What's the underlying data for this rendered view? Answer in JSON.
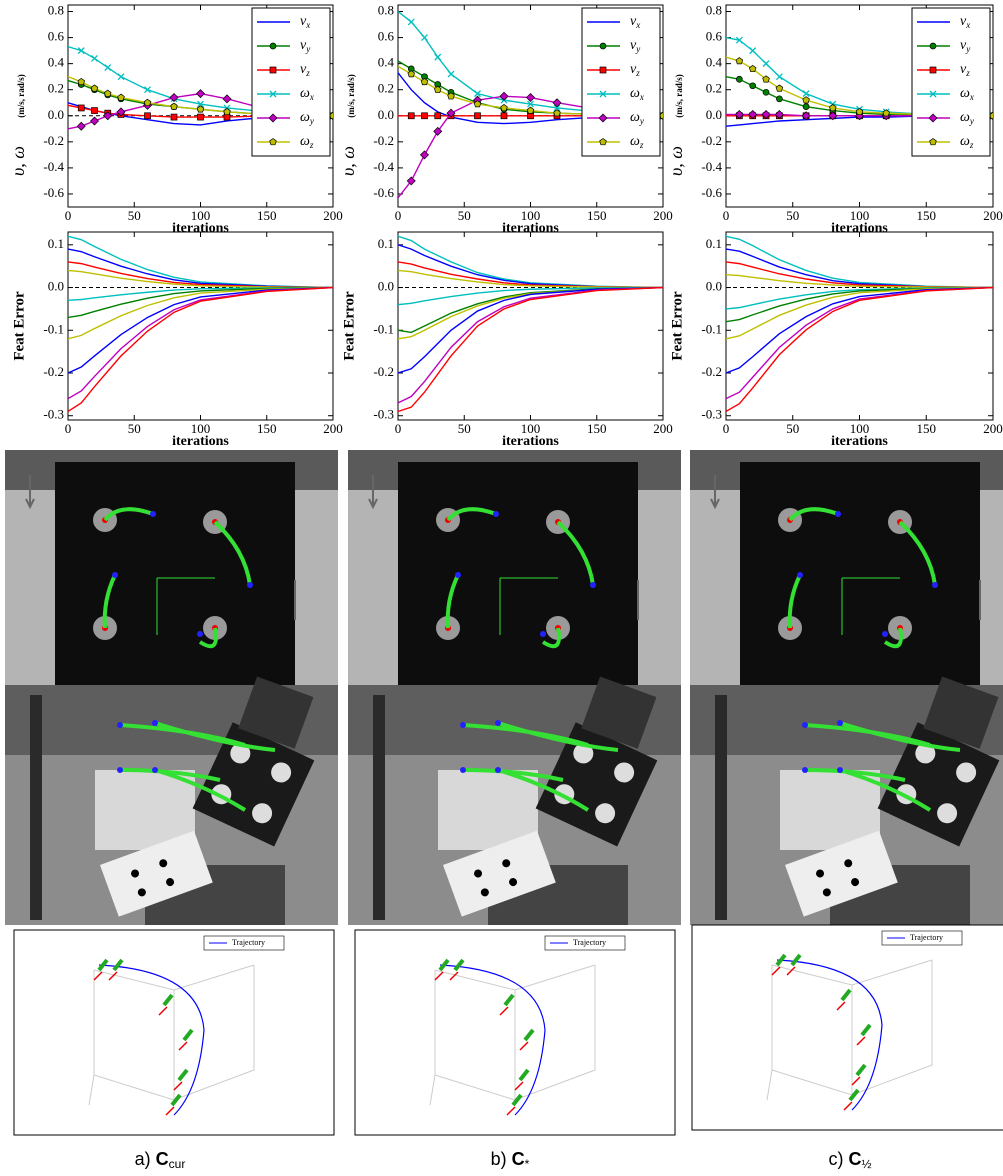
{
  "chart_data": [
    {
      "type": "line",
      "ylabel": "υ, ω",
      "ylabel_unit": "(m/s, rad/s)",
      "xlabel": "iterations",
      "xlim": [
        0,
        200
      ],
      "ylim": [
        -0.7,
        0.85
      ],
      "xticks": [
        0,
        50,
        100,
        150,
        200
      ],
      "yticks": [
        -0.6,
        -0.4,
        -0.2,
        {
          "value": 0,
          "label": "0.0"
        },
        0.2,
        0.4,
        0.6,
        0.8
      ],
      "legend": "upper right",
      "grid": false,
      "x": [
        0,
        10,
        20,
        30,
        40,
        60,
        80,
        100,
        120,
        150,
        200
      ],
      "series": [
        {
          "name": "v_x",
          "color": "#0000ff",
          "marker": "none",
          "values": [
            0.1,
            0.07,
            0.04,
            0.02,
            0.0,
            -0.03,
            -0.06,
            -0.07,
            -0.04,
            -0.01,
            0
          ]
        },
        {
          "name": "v_y",
          "color": "#008000",
          "marker": "circle",
          "values": [
            0.27,
            0.24,
            0.2,
            0.16,
            0.13,
            0.09,
            0.07,
            0.05,
            0.03,
            0.01,
            0
          ]
        },
        {
          "name": "v_z",
          "color": "#ff0000",
          "marker": "square",
          "values": [
            0.08,
            0.06,
            0.04,
            0.02,
            0.01,
            0,
            -0.01,
            -0.01,
            -0.01,
            0,
            0
          ]
        },
        {
          "name": "ω_x",
          "color": "#00bfbf",
          "marker": "x",
          "values": [
            0.53,
            0.5,
            0.44,
            0.37,
            0.3,
            0.2,
            0.13,
            0.09,
            0.06,
            0.03,
            0
          ]
        },
        {
          "name": "ω_y",
          "color": "#bf00bf",
          "marker": "diamond",
          "values": [
            -0.1,
            -0.08,
            -0.04,
            0,
            0.03,
            0.08,
            0.14,
            0.17,
            0.13,
            0.05,
            0
          ]
        },
        {
          "name": "ω_z",
          "color": "#bfbf00",
          "marker": "pentagon",
          "values": [
            0.3,
            0.26,
            0.21,
            0.17,
            0.14,
            0.1,
            0.07,
            0.05,
            0.03,
            0.01,
            0
          ]
        }
      ]
    },
    {
      "type": "line",
      "ylabel": "υ, ω",
      "ylabel_unit": "(m/s, rad/s)",
      "xlabel": "iterations",
      "xlim": [
        0,
        200
      ],
      "ylim": [
        -0.7,
        0.85
      ],
      "xticks": [
        0,
        50,
        100,
        150,
        200
      ],
      "yticks": [
        -0.6,
        -0.4,
        -0.2,
        {
          "value": 0,
          "label": "0.0"
        },
        0.2,
        0.4,
        0.6,
        0.8
      ],
      "legend": "upper right",
      "grid": false,
      "x": [
        0,
        10,
        20,
        30,
        40,
        60,
        80,
        100,
        120,
        150,
        200
      ],
      "series": [
        {
          "name": "v_x",
          "color": "#0000ff",
          "marker": "none",
          "values": [
            0.33,
            0.2,
            0.1,
            0.03,
            -0.01,
            -0.05,
            -0.06,
            -0.05,
            -0.03,
            -0.01,
            0
          ]
        },
        {
          "name": "v_y",
          "color": "#008000",
          "marker": "circle",
          "values": [
            0.42,
            0.36,
            0.3,
            0.24,
            0.18,
            0.1,
            0.05,
            0.03,
            0.02,
            0.01,
            0
          ]
        },
        {
          "name": "v_z",
          "color": "#ff0000",
          "marker": "square",
          "values": [
            0,
            0,
            0,
            0,
            0,
            0,
            0,
            0,
            0,
            0,
            0
          ]
        },
        {
          "name": "ω_x",
          "color": "#00bfbf",
          "marker": "x",
          "values": [
            0.8,
            0.72,
            0.6,
            0.45,
            0.32,
            0.17,
            0.12,
            0.09,
            0.06,
            0.03,
            0
          ]
        },
        {
          "name": "ω_y",
          "color": "#bf00bf",
          "marker": "diamond",
          "values": [
            -0.63,
            -0.5,
            -0.3,
            -0.12,
            0.02,
            0.12,
            0.15,
            0.14,
            0.1,
            0.05,
            0
          ]
        },
        {
          "name": "ω_z",
          "color": "#bfbf00",
          "marker": "pentagon",
          "values": [
            0.38,
            0.32,
            0.26,
            0.2,
            0.15,
            0.09,
            0.06,
            0.04,
            0.02,
            0.01,
            0
          ]
        }
      ]
    },
    {
      "type": "line",
      "ylabel": "υ, ω",
      "ylabel_unit": "(m/s, rad/s)",
      "xlabel": "iterations",
      "xlim": [
        0,
        200
      ],
      "ylim": [
        -0.7,
        0.85
      ],
      "xticks": [
        0,
        50,
        100,
        150,
        200
      ],
      "yticks": [
        -0.6,
        -0.4,
        -0.2,
        {
          "value": 0,
          "label": "0.0"
        },
        0.2,
        0.4,
        0.6,
        0.8
      ],
      "legend": "upper right",
      "grid": false,
      "x": [
        0,
        10,
        20,
        30,
        40,
        60,
        80,
        100,
        120,
        150,
        200
      ],
      "series": [
        {
          "name": "v_x",
          "color": "#0000ff",
          "marker": "none",
          "values": [
            -0.08,
            -0.07,
            -0.06,
            -0.05,
            -0.04,
            -0.03,
            -0.02,
            -0.01,
            -0.01,
            0,
            0
          ]
        },
        {
          "name": "v_y",
          "color": "#008000",
          "marker": "circle",
          "values": [
            0.3,
            0.28,
            0.23,
            0.18,
            0.13,
            0.07,
            0.04,
            0.02,
            0.01,
            0,
            0
          ]
        },
        {
          "name": "v_z",
          "color": "#ff0000",
          "marker": "square",
          "values": [
            0,
            0,
            0,
            0,
            0,
            0,
            0,
            0,
            0,
            0,
            0
          ]
        },
        {
          "name": "ω_x",
          "color": "#00bfbf",
          "marker": "x",
          "values": [
            0.6,
            0.58,
            0.5,
            0.4,
            0.3,
            0.17,
            0.09,
            0.05,
            0.03,
            0.01,
            0
          ]
        },
        {
          "name": "ω_y",
          "color": "#bf00bf",
          "marker": "diamond",
          "values": [
            0.01,
            0.01,
            0.01,
            0.01,
            0.01,
            0,
            0,
            0,
            0,
            0,
            0
          ]
        },
        {
          "name": "ω_z",
          "color": "#bfbf00",
          "marker": "pentagon",
          "values": [
            0.45,
            0.42,
            0.36,
            0.28,
            0.21,
            0.12,
            0.06,
            0.03,
            0.02,
            0.01,
            0
          ]
        }
      ]
    },
    {
      "type": "line",
      "ylabel": "Feat Error",
      "xlabel": "iterations",
      "xlim": [
        0,
        200
      ],
      "ylim": [
        -0.31,
        0.13
      ],
      "xticks": [
        0,
        50,
        100,
        150,
        200
      ],
      "yticks": [
        -0.3,
        -0.2,
        -0.1,
        {
          "value": 0,
          "label": "0.0"
        },
        0.1
      ],
      "grid": false,
      "x": [
        0,
        10,
        20,
        40,
        60,
        80,
        100,
        150,
        200
      ],
      "series": [
        {
          "color": "#00bfbf",
          "values": [
            0.12,
            0.112,
            0.096,
            0.066,
            0.042,
            0.024,
            0.013,
            0.004,
            0
          ]
        },
        {
          "color": "#0000ff",
          "values": [
            0.09,
            0.084,
            0.072,
            0.05,
            0.032,
            0.018,
            0.01,
            0.003,
            0
          ]
        },
        {
          "color": "#ff0000",
          "values": [
            0.06,
            0.056,
            0.048,
            0.033,
            0.021,
            0.012,
            0.007,
            0.002,
            0
          ]
        },
        {
          "color": "#bfbf00",
          "values": [
            0.04,
            0.037,
            0.032,
            0.022,
            0.014,
            0.008,
            0.004,
            0.001,
            0
          ]
        },
        {
          "color": "#00bfbf",
          "values": [
            -0.03,
            -0.028,
            -0.024,
            -0.017,
            -0.011,
            -0.006,
            -0.003,
            -0.001,
            0
          ]
        },
        {
          "color": "#008000",
          "values": [
            -0.07,
            -0.065,
            -0.056,
            -0.039,
            -0.025,
            -0.014,
            -0.008,
            -0.002,
            0
          ]
        },
        {
          "color": "#bfbf00",
          "values": [
            -0.12,
            -0.112,
            -0.096,
            -0.066,
            -0.042,
            -0.024,
            -0.013,
            -0.004,
            0
          ]
        },
        {
          "color": "#0000ff",
          "values": [
            -0.2,
            -0.186,
            -0.16,
            -0.11,
            -0.07,
            -0.04,
            -0.022,
            -0.006,
            0
          ]
        },
        {
          "color": "#bf00bf",
          "values": [
            -0.26,
            -0.242,
            -0.208,
            -0.143,
            -0.091,
            -0.052,
            -0.029,
            -0.008,
            0
          ]
        },
        {
          "color": "#ff0000",
          "values": [
            -0.29,
            -0.27,
            -0.232,
            -0.16,
            -0.102,
            -0.058,
            -0.032,
            -0.009,
            0
          ]
        }
      ]
    },
    {
      "type": "line",
      "ylabel": "Feat Error",
      "xlabel": "iterations",
      "xlim": [
        0,
        200
      ],
      "ylim": [
        -0.31,
        0.13
      ],
      "xticks": [
        0,
        50,
        100,
        150,
        200
      ],
      "yticks": [
        -0.3,
        -0.2,
        -0.1,
        {
          "value": 0,
          "label": "0.0"
        },
        0.1
      ],
      "grid": false,
      "x": [
        0,
        10,
        20,
        40,
        60,
        80,
        100,
        150,
        200
      ],
      "series": [
        {
          "color": "#00bfbf",
          "values": [
            0.12,
            0.11,
            0.09,
            0.06,
            0.035,
            0.02,
            0.011,
            0.003,
            0
          ]
        },
        {
          "color": "#0000ff",
          "values": [
            0.1,
            0.09,
            0.075,
            0.05,
            0.03,
            0.017,
            0.009,
            0.002,
            0
          ]
        },
        {
          "color": "#ff0000",
          "values": [
            0.06,
            0.055,
            0.046,
            0.031,
            0.02,
            0.011,
            0.006,
            0.002,
            0
          ]
        },
        {
          "color": "#bfbf00",
          "values": [
            0.04,
            0.037,
            0.031,
            0.021,
            0.013,
            0.007,
            0.004,
            0.001,
            0
          ]
        },
        {
          "color": "#00bfbf",
          "values": [
            -0.04,
            -0.037,
            -0.031,
            -0.021,
            -0.013,
            -0.007,
            -0.004,
            -0.001,
            0
          ]
        },
        {
          "color": "#008000",
          "values": [
            -0.1,
            -0.105,
            -0.09,
            -0.06,
            -0.038,
            -0.022,
            -0.012,
            -0.003,
            0
          ]
        },
        {
          "color": "#bfbf00",
          "values": [
            -0.12,
            -0.115,
            -0.1,
            -0.068,
            -0.043,
            -0.025,
            -0.014,
            -0.004,
            0
          ]
        },
        {
          "color": "#0000ff",
          "values": [
            -0.2,
            -0.19,
            -0.162,
            -0.1,
            -0.055,
            -0.03,
            -0.016,
            -0.004,
            0
          ]
        },
        {
          "color": "#bf00bf",
          "values": [
            -0.27,
            -0.255,
            -0.22,
            -0.14,
            -0.08,
            -0.045,
            -0.025,
            -0.006,
            0
          ]
        },
        {
          "color": "#ff0000",
          "values": [
            -0.29,
            -0.28,
            -0.245,
            -0.16,
            -0.09,
            -0.05,
            -0.028,
            -0.007,
            0
          ]
        }
      ]
    },
    {
      "type": "line",
      "ylabel": "Feat Error",
      "xlabel": "iterations",
      "xlim": [
        0,
        200
      ],
      "ylim": [
        -0.31,
        0.13
      ],
      "xticks": [
        0,
        50,
        100,
        150,
        200
      ],
      "yticks": [
        -0.3,
        -0.2,
        -0.1,
        {
          "value": 0,
          "label": "0.0"
        },
        0.1
      ],
      "grid": false,
      "x": [
        0,
        10,
        20,
        40,
        60,
        80,
        100,
        150,
        200
      ],
      "series": [
        {
          "color": "#00bfbf",
          "values": [
            0.12,
            0.113,
            0.098,
            0.065,
            0.04,
            0.022,
            0.012,
            0.003,
            0
          ]
        },
        {
          "color": "#0000ff",
          "values": [
            0.09,
            0.085,
            0.073,
            0.048,
            0.03,
            0.016,
            0.009,
            0.002,
            0
          ]
        },
        {
          "color": "#ff0000",
          "values": [
            0.06,
            0.056,
            0.048,
            0.032,
            0.02,
            0.011,
            0.006,
            0.002,
            0
          ]
        },
        {
          "color": "#bfbf00",
          "values": [
            0.03,
            0.028,
            0.024,
            0.016,
            0.01,
            0.006,
            0.003,
            0.001,
            0
          ]
        },
        {
          "color": "#00bfbf",
          "values": [
            -0.05,
            -0.047,
            -0.04,
            -0.027,
            -0.017,
            -0.009,
            -0.005,
            -0.001,
            0
          ]
        },
        {
          "color": "#008000",
          "values": [
            -0.08,
            -0.075,
            -0.064,
            -0.043,
            -0.027,
            -0.015,
            -0.008,
            -0.002,
            0
          ]
        },
        {
          "color": "#bfbf00",
          "values": [
            -0.12,
            -0.113,
            -0.097,
            -0.065,
            -0.041,
            -0.023,
            -0.012,
            -0.003,
            0
          ]
        },
        {
          "color": "#0000ff",
          "values": [
            -0.2,
            -0.188,
            -0.162,
            -0.108,
            -0.068,
            -0.038,
            -0.021,
            -0.005,
            0
          ]
        },
        {
          "color": "#bf00bf",
          "values": [
            -0.26,
            -0.245,
            -0.21,
            -0.14,
            -0.088,
            -0.05,
            -0.027,
            -0.007,
            0
          ]
        },
        {
          "color": "#ff0000",
          "values": [
            -0.29,
            -0.272,
            -0.235,
            -0.157,
            -0.099,
            -0.056,
            -0.03,
            -0.008,
            0
          ]
        }
      ]
    }
  ],
  "trajectory_plots": [
    {
      "legend": "Trajectory"
    },
    {
      "legend": "Trajectory"
    },
    {
      "legend": "Trajectory"
    }
  ],
  "captions": [
    {
      "label": "a)",
      "symbol": "C",
      "sub": "cur"
    },
    {
      "label": "b)",
      "symbol": "C",
      "sub": "*"
    },
    {
      "label": "c)",
      "symbol": "C",
      "sub": "½"
    }
  ]
}
